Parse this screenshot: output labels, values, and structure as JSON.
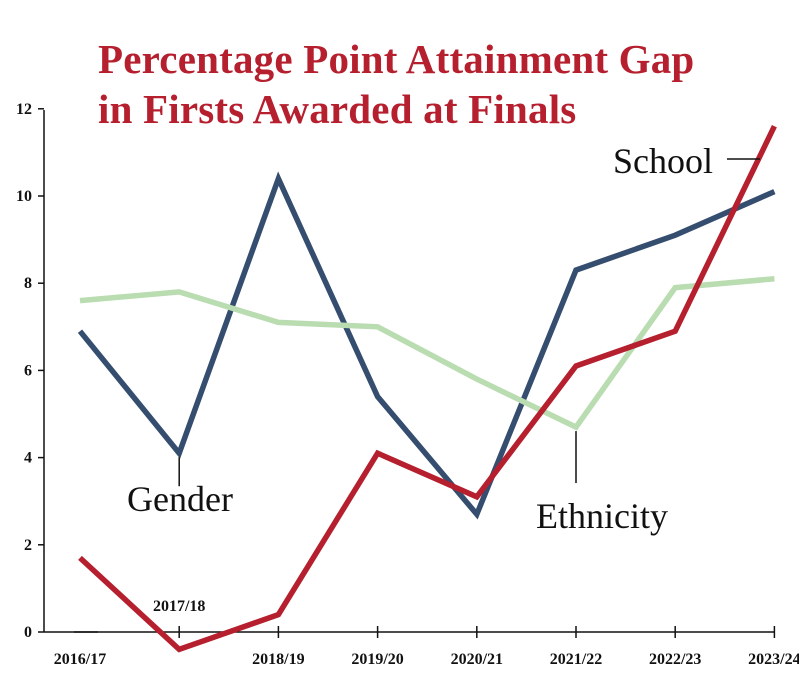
{
  "chart_data": {
    "type": "line",
    "title_lines": [
      "Percentage Point Attainment Gap",
      "in Firsts Awarded at Finals"
    ],
    "categories": [
      "2016/17",
      "2017/18",
      "2018/19",
      "2019/20",
      "2020/21",
      "2021/22",
      "2022/23",
      "2023/24"
    ],
    "y_ticks": [
      "0",
      "2",
      "4",
      "6",
      "8",
      "10",
      "12"
    ],
    "ylim": [
      0,
      12
    ],
    "grid": false,
    "legend": "direct labels on lines",
    "series": [
      {
        "name": "Gender",
        "color": "#354d6e",
        "values": [
          6.9,
          4.1,
          10.4,
          5.4,
          2.7,
          8.3,
          9.1,
          10.1
        ]
      },
      {
        "name": "Ethnicity",
        "color": "#b9dcb1",
        "values": [
          7.6,
          7.8,
          7.1,
          7.0,
          5.8,
          4.7,
          7.9,
          8.1
        ]
      },
      {
        "name": "School",
        "color": "#b51f2e",
        "values": [
          1.7,
          -0.4,
          0.4,
          4.1,
          3.1,
          6.1,
          6.9,
          11.6
        ]
      }
    ]
  }
}
